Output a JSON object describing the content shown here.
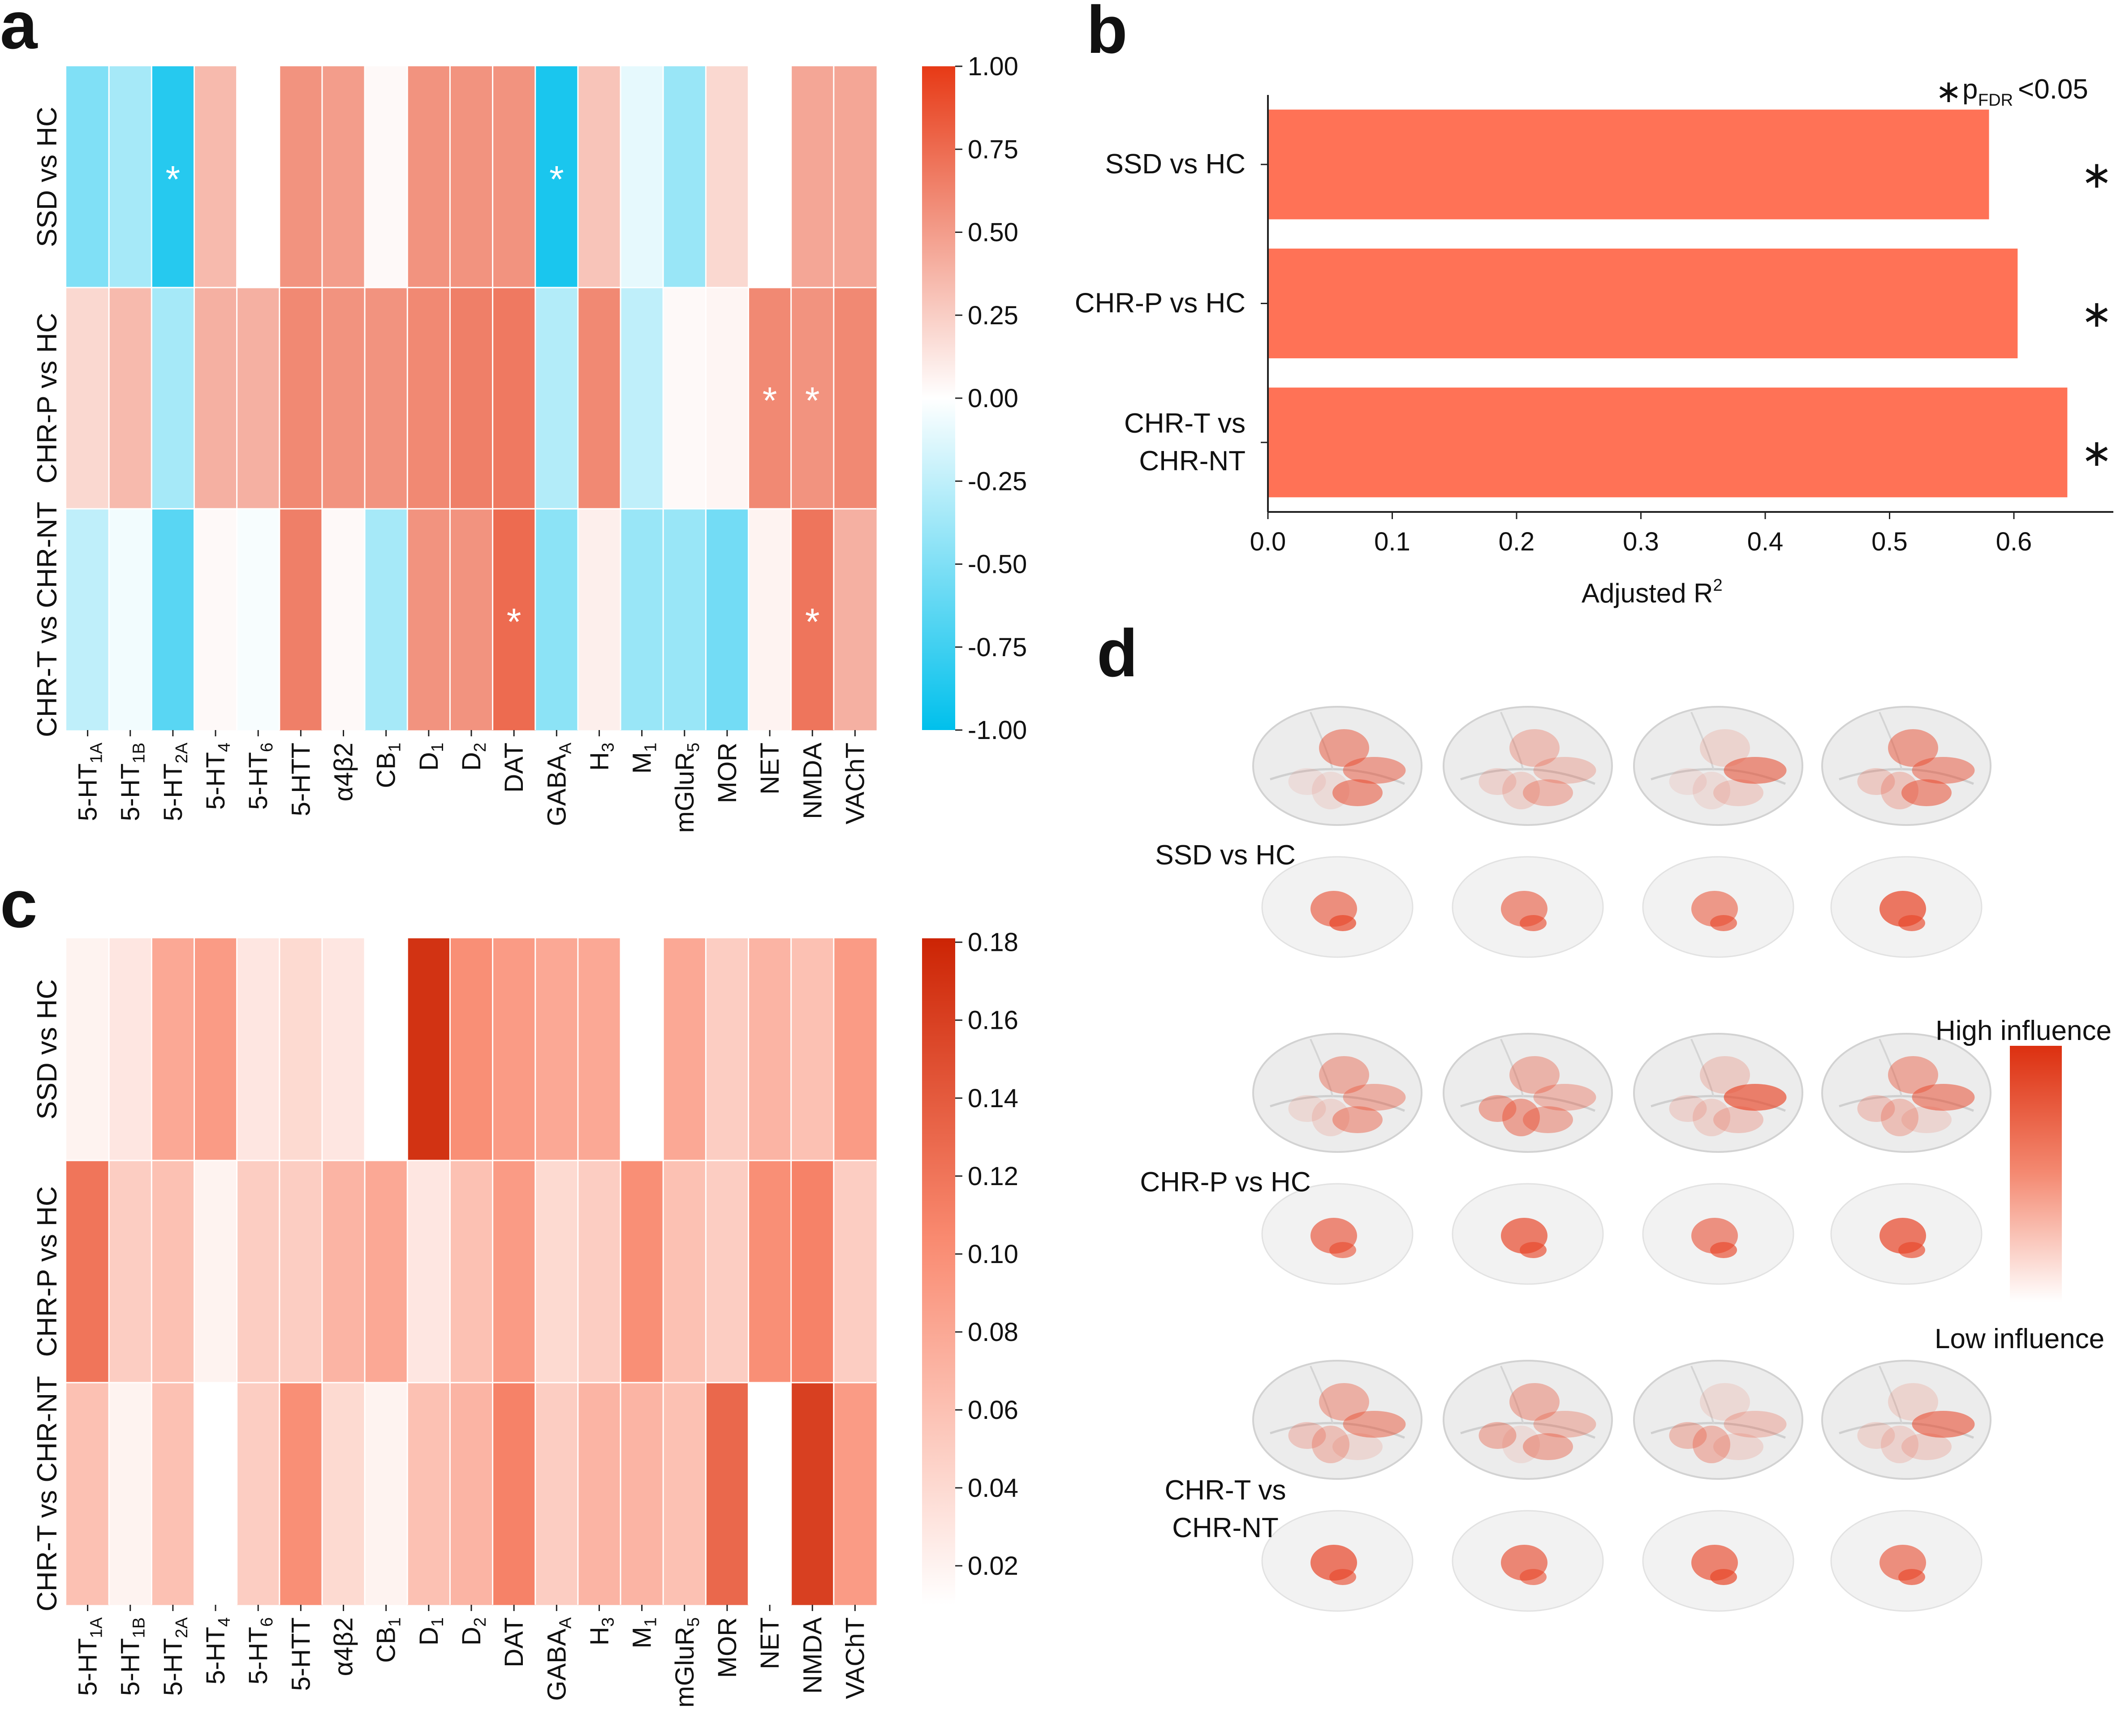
{
  "panels": {
    "a": "a",
    "b": "b",
    "c": "c",
    "d": "d"
  },
  "receptors": [
    {
      "main": "5-HT",
      "sub": "1A"
    },
    {
      "main": "5-HT",
      "sub": "1B"
    },
    {
      "main": "5-HT",
      "sub": "2A"
    },
    {
      "main": "5-HT",
      "sub": "4"
    },
    {
      "main": "5-HT",
      "sub": "6"
    },
    {
      "main": "5-HTT",
      "sub": ""
    },
    {
      "main": "α4β2",
      "sub": ""
    },
    {
      "main": "CB",
      "sub": "1"
    },
    {
      "main": "D",
      "sub": "1"
    },
    {
      "main": "D",
      "sub": "2"
    },
    {
      "main": "DAT",
      "sub": ""
    },
    {
      "main": "GABA",
      "sub": "A"
    },
    {
      "main": "H",
      "sub": "3"
    },
    {
      "main": "M",
      "sub": "1"
    },
    {
      "main": "mGluR",
      "sub": "5"
    },
    {
      "main": "MOR",
      "sub": ""
    },
    {
      "main": "NET",
      "sub": ""
    },
    {
      "main": "NMDA",
      "sub": ""
    },
    {
      "main": "VAChT",
      "sub": ""
    }
  ],
  "comparisons": [
    "SSD vs HC",
    "CHR-P vs HC",
    "CHR-T vs CHR-NT"
  ],
  "chart_data": [
    {
      "id": "a",
      "type": "heatmap",
      "rows": [
        "SSD vs HC",
        "CHR-P vs HC",
        "CHR-T vs CHR-NT"
      ],
      "values": [
        [
          -0.5,
          -0.35,
          -0.85,
          0.35,
          0.0,
          0.55,
          0.5,
          0.03,
          0.55,
          0.55,
          0.55,
          -0.9,
          0.3,
          -0.1,
          -0.4,
          0.2,
          0.0,
          0.45,
          0.45
        ],
        [
          0.2,
          0.35,
          -0.35,
          0.4,
          0.4,
          0.6,
          0.55,
          0.55,
          0.6,
          0.65,
          0.68,
          -0.3,
          0.6,
          -0.25,
          0.03,
          0.05,
          0.6,
          0.55,
          0.6
        ],
        [
          -0.25,
          -0.05,
          -0.65,
          0.03,
          -0.03,
          0.65,
          0.03,
          -0.35,
          0.55,
          0.55,
          0.75,
          -0.45,
          0.08,
          -0.4,
          -0.4,
          -0.55,
          0.06,
          0.7,
          0.4
        ]
      ],
      "significant": [
        [
          0,
          2
        ],
        [
          0,
          11
        ],
        [
          1,
          16
        ],
        [
          1,
          17
        ],
        [
          2,
          10
        ],
        [
          2,
          17
        ]
      ],
      "colorbar": {
        "min": -1.0,
        "max": 1.0,
        "ticks": [
          "1.00",
          "0.75",
          "0.50",
          "0.25",
          "0.00",
          "-0.25",
          "-0.50",
          "-0.75",
          "-1.00"
        ]
      },
      "colors": {
        "negative": "#00c0ec",
        "neutral": "#ffffff",
        "positive": "#e73a16"
      },
      "asterisk": "*"
    },
    {
      "id": "b",
      "type": "bar",
      "orientation": "horizontal",
      "categories": [
        "SSD vs HC",
        "CHR-P vs HC",
        "CHR-T vs CHR-NT"
      ],
      "category_lines": [
        [
          "SSD vs HC"
        ],
        [
          "CHR-P vs HC"
        ],
        [
          "CHR-T vs",
          "CHR-NT"
        ]
      ],
      "values": [
        0.58,
        0.603,
        0.643
      ],
      "significant": [
        true,
        true,
        true
      ],
      "xlabel": "Adjusted R",
      "xlabel_sup": "2",
      "xlim": [
        0.0,
        0.68
      ],
      "xticks": [
        "0.0",
        "0.1",
        "0.2",
        "0.3",
        "0.4",
        "0.5",
        "0.6"
      ],
      "bar_color": "#ff7256",
      "legend": {
        "symbol": "∗",
        "p": "p",
        "sub": "FDR",
        "threshold": "<0.05"
      }
    },
    {
      "id": "c",
      "type": "heatmap",
      "rows": [
        "SSD vs HC",
        "CHR-P vs HC",
        "CHR-T vs CHR-NT"
      ],
      "values": [
        [
          0.02,
          0.03,
          0.08,
          0.09,
          0.03,
          0.04,
          0.03,
          0.01,
          0.17,
          0.1,
          0.09,
          0.08,
          0.08,
          0.01,
          0.08,
          0.05,
          0.07,
          0.06,
          0.09
        ],
        [
          0.12,
          0.05,
          0.06,
          0.02,
          0.05,
          0.05,
          0.07,
          0.08,
          0.03,
          0.06,
          0.09,
          0.04,
          0.05,
          0.1,
          0.06,
          0.05,
          0.1,
          0.11,
          0.05
        ],
        [
          0.06,
          0.02,
          0.06,
          0.01,
          0.05,
          0.1,
          0.04,
          0.02,
          0.06,
          0.07,
          0.11,
          0.05,
          0.07,
          0.07,
          0.06,
          0.13,
          0.01,
          0.16,
          0.09
        ]
      ],
      "colorbar": {
        "min": 0.01,
        "max": 0.181,
        "ticks": [
          "0.18",
          "0.16",
          "0.14",
          "0.12",
          "0.10",
          "0.08",
          "0.06",
          "0.04",
          "0.02"
        ]
      },
      "colors": {
        "low": "#ffffff",
        "high": "#cc2404"
      }
    }
  ],
  "panel_d": {
    "rows": [
      {
        "label_lines": [
          "SSD vs HC"
        ]
      },
      {
        "label_lines": [
          "CHR-P vs HC"
        ]
      },
      {
        "label_lines": [
          "CHR-T vs",
          "CHR-NT"
        ]
      }
    ],
    "legend_high": "High influence",
    "legend_low": "Low influence",
    "brain_color": "#ececec",
    "highlight_color": "#e8472a"
  }
}
